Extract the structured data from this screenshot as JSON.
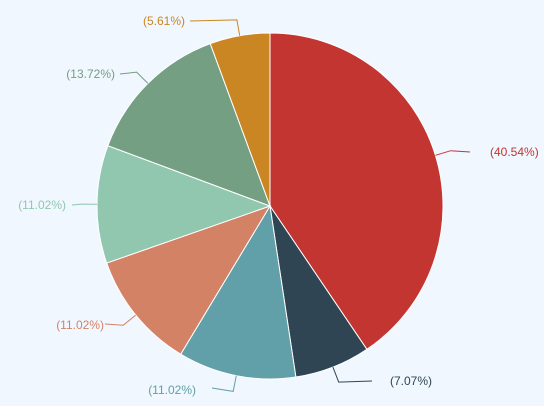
{
  "chart_data": {
    "type": "pie",
    "start_angle_deg": 0,
    "direction": "clockwise",
    "legend": "none",
    "slices": [
      {
        "label": "(40.54%)",
        "value": 40.54,
        "color": "#c23531"
      },
      {
        "label": "(7.07%)",
        "value": 7.07,
        "color": "#2f4554"
      },
      {
        "label": "(11.02%)",
        "value": 11.02,
        "color": "#61a0a8"
      },
      {
        "label": "(11.02%)",
        "value": 11.02,
        "color": "#d48265"
      },
      {
        "label": "(11.02%)",
        "value": 11.02,
        "color": "#91c7ae"
      },
      {
        "label": "(13.72%)",
        "value": 13.72,
        "color": "#749f83"
      },
      {
        "label": "(5.61%)",
        "value": 5.61,
        "color": "#ca8622"
      }
    ]
  }
}
